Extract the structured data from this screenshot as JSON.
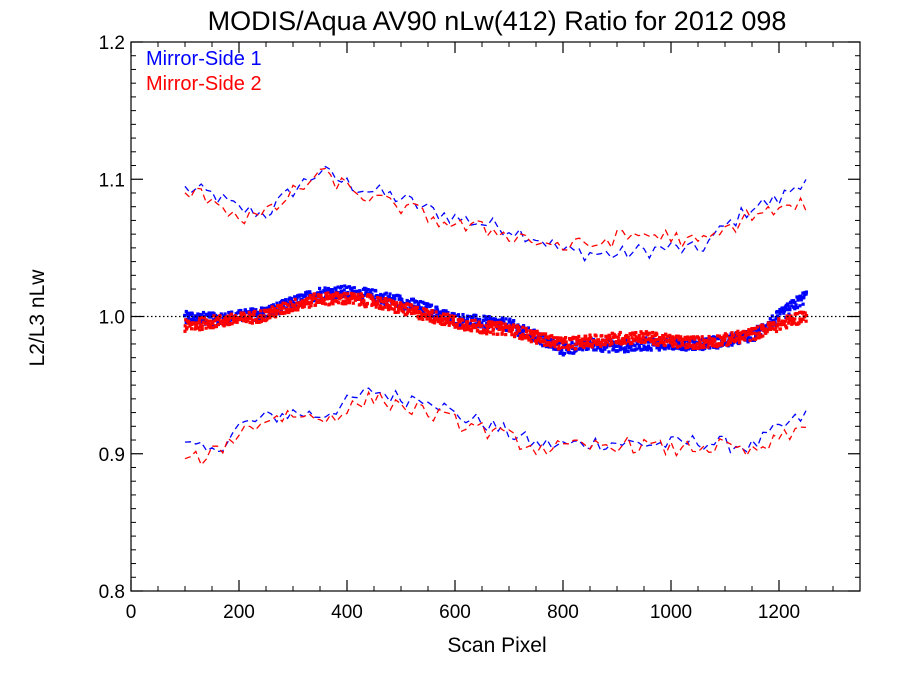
{
  "chart_data": {
    "type": "line",
    "title": "MODIS/Aqua AV90 nLw(412) Ratio for 2012 098",
    "xlabel": "Scan Pixel",
    "ylabel": "L2/L3 nLw",
    "xlim": [
      0,
      1350
    ],
    "ylim": [
      0.8,
      1.2
    ],
    "x_ticks": [
      0,
      200,
      400,
      600,
      800,
      1000,
      1200
    ],
    "x_tick_labels": [
      "0",
      "200",
      "400",
      "600",
      "800",
      "1000",
      "1200"
    ],
    "y_ticks": [
      0.8,
      0.9,
      1.0,
      1.1,
      1.2
    ],
    "y_tick_labels": [
      "0.8",
      "0.9",
      "1.0",
      "1.1",
      "1.2"
    ],
    "reference_line": {
      "y": 1.0,
      "style": "dotted"
    },
    "legend_position": "top-left",
    "x": [
      100,
      150,
      200,
      250,
      300,
      350,
      400,
      450,
      500,
      550,
      600,
      650,
      700,
      750,
      800,
      850,
      900,
      950,
      1000,
      1050,
      1100,
      1150,
      1200,
      1250
    ],
    "series": [
      {
        "name": "Mirror-Side 1",
        "color": "#0000ff",
        "mean": [
          1.0,
          0.998,
          1.0,
          1.003,
          1.01,
          1.017,
          1.018,
          1.015,
          1.011,
          1.005,
          0.998,
          0.996,
          0.994,
          0.985,
          0.976,
          0.98,
          0.978,
          0.98,
          0.98,
          0.98,
          0.982,
          0.986,
          1.0,
          1.015
        ],
        "upper": [
          1.093,
          1.089,
          1.078,
          1.075,
          1.092,
          1.106,
          1.097,
          1.091,
          1.086,
          1.078,
          1.072,
          1.068,
          1.064,
          1.058,
          1.048,
          1.046,
          1.045,
          1.048,
          1.05,
          1.048,
          1.065,
          1.08,
          1.085,
          1.102
        ],
        "lower": [
          0.906,
          0.9,
          0.92,
          0.926,
          0.93,
          0.928,
          0.937,
          0.946,
          0.94,
          0.942,
          0.928,
          0.923,
          0.915,
          0.907,
          0.906,
          0.908,
          0.908,
          0.907,
          0.907,
          0.909,
          0.907,
          0.905,
          0.918,
          0.928
        ]
      },
      {
        "name": "Mirror-Side 2",
        "color": "#ff0000",
        "mean": [
          0.993,
          0.996,
          0.998,
          1.001,
          1.008,
          1.013,
          1.013,
          1.011,
          1.006,
          1.001,
          0.996,
          0.992,
          0.991,
          0.985,
          0.98,
          0.982,
          0.984,
          0.985,
          0.982,
          0.981,
          0.983,
          0.987,
          0.994,
          1.001
        ],
        "upper": [
          1.09,
          1.087,
          1.072,
          1.074,
          1.09,
          1.104,
          1.094,
          1.085,
          1.08,
          1.073,
          1.066,
          1.064,
          1.06,
          1.055,
          1.051,
          1.052,
          1.057,
          1.06,
          1.058,
          1.053,
          1.062,
          1.075,
          1.077,
          1.082
        ],
        "lower": [
          0.893,
          0.9,
          0.915,
          0.925,
          0.929,
          0.925,
          0.932,
          0.941,
          0.935,
          0.93,
          0.923,
          0.918,
          0.912,
          0.904,
          0.904,
          0.905,
          0.907,
          0.906,
          0.903,
          0.905,
          0.905,
          0.9,
          0.91,
          0.919
        ]
      }
    ]
  }
}
